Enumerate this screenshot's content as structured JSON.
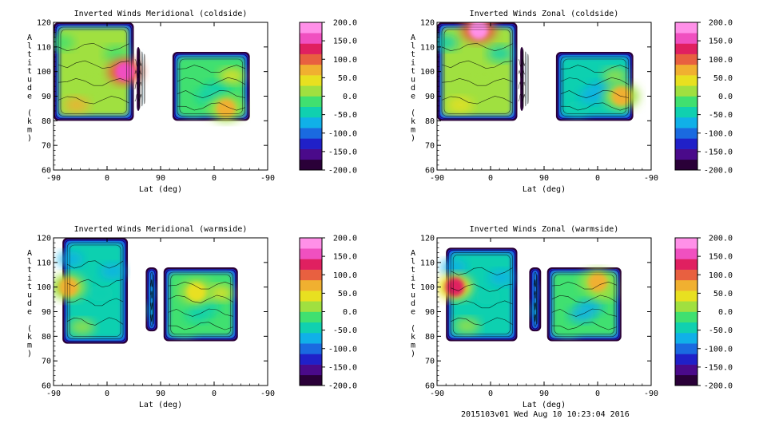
{
  "footer": "2015103v01 Wed Aug 10 10:23:04 2016",
  "colorbar": {
    "ticks": [
      "200.0",
      "150.0",
      "100.0",
      "50.0",
      "0.0",
      "-50.0",
      "-100.0",
      "-150.0",
      "-200.0"
    ],
    "range": [
      -200,
      200
    ],
    "colors": [
      "#2a0038",
      "#4a0a8a",
      "#2020c8",
      "#1a6ae0",
      "#10b0e8",
      "#10d0b0",
      "#40e070",
      "#a0e040",
      "#e8e020",
      "#f0b030",
      "#e86040",
      "#e02060",
      "#f050c0",
      "#ff90e8"
    ]
  },
  "axes": {
    "xlabel": "Lat (deg)",
    "ylabel": "Altitude (km)",
    "xticks": [
      "-90",
      "0",
      "90",
      "0",
      "-90"
    ],
    "yticks": [
      "120",
      "110",
      "100",
      "90",
      "80",
      "70",
      "60"
    ]
  },
  "chart_data": [
    {
      "type": "heatmap",
      "title": "Inverted Winds Meridional (coldside)",
      "xlabel": "Lat (deg)",
      "ylabel": "Altitude (km)",
      "ylim": [
        60,
        120
      ],
      "x_ticks": [
        "-90",
        "0",
        "90",
        "0",
        "-90"
      ],
      "y_ticks": [
        120,
        110,
        100,
        90,
        80,
        70,
        60
      ],
      "color_range": [
        -200,
        200
      ],
      "regions": [
        {
          "x_track": [
            -90,
            45
          ],
          "alt": [
            80,
            120
          ],
          "mean_value": 20,
          "peak_value": 170,
          "peak_at": [
            30,
            100
          ]
        },
        {
          "x_track": [
            50,
            55
          ],
          "alt": [
            84,
            110
          ],
          "mean_value": -60
        },
        {
          "x_track": [
            110,
            240
          ],
          "alt": [
            80,
            108
          ],
          "mean_value": -10,
          "peak_value": 60,
          "peak_at": [
            200,
            85
          ]
        }
      ]
    },
    {
      "type": "heatmap",
      "title": "Inverted Winds Zonal (coldside)",
      "xlabel": "Lat (deg)",
      "ylabel": "Altitude (km)",
      "ylim": [
        60,
        120
      ],
      "x_ticks": [
        "-90",
        "0",
        "90",
        "0",
        "-90"
      ],
      "y_ticks": [
        120,
        110,
        100,
        90,
        80,
        70,
        60
      ],
      "color_range": [
        -200,
        200
      ],
      "regions": [
        {
          "x_track": [
            -90,
            45
          ],
          "alt": [
            80,
            120
          ],
          "mean_value": 0,
          "peak_value": 180,
          "peak_at": [
            -20,
            117
          ]
        },
        {
          "x_track": [
            50,
            55
          ],
          "alt": [
            84,
            110
          ],
          "mean_value": -80
        },
        {
          "x_track": [
            110,
            240
          ],
          "alt": [
            80,
            108
          ],
          "mean_value": -40,
          "peak_value": 60,
          "peak_at": [
            220,
            90
          ]
        }
      ]
    },
    {
      "type": "heatmap",
      "title": "Inverted Winds Meridional (warmside)",
      "xlabel": "Lat (deg)",
      "ylabel": "Altitude (km)",
      "ylim": [
        60,
        120
      ],
      "x_ticks": [
        "-90",
        "0",
        "90",
        "0",
        "-90"
      ],
      "y_ticks": [
        120,
        110,
        100,
        90,
        80,
        70,
        60
      ],
      "color_range": [
        -200,
        200
      ],
      "regions": [
        {
          "x_track": [
            -75,
            35
          ],
          "alt": [
            77,
            120
          ],
          "mean_value": -40,
          "peak_value": 60,
          "peak_at": [
            -65,
            100
          ]
        },
        {
          "x_track": [
            65,
            85
          ],
          "alt": [
            82,
            108
          ],
          "mean_value": -40
        },
        {
          "x_track": [
            95,
            220
          ],
          "alt": [
            78,
            108
          ],
          "mean_value": -10,
          "peak_value": 30,
          "peak_at": [
            150,
            98
          ]
        }
      ]
    },
    {
      "type": "heatmap",
      "title": "Inverted Winds Zonal (warmside)",
      "xlabel": "Lat (deg)",
      "ylabel": "Altitude (km)",
      "ylim": [
        60,
        120
      ],
      "x_ticks": [
        "-90",
        "0",
        "90",
        "0",
        "-90"
      ],
      "y_ticks": [
        120,
        110,
        100,
        90,
        80,
        70,
        60
      ],
      "color_range": [
        -200,
        200
      ],
      "regions": [
        {
          "x_track": [
            -75,
            45
          ],
          "alt": [
            78,
            116
          ],
          "mean_value": -40,
          "peak_value": 120,
          "peak_at": [
            -60,
            100
          ]
        },
        {
          "x_track": [
            65,
            85
          ],
          "alt": [
            82,
            108
          ],
          "mean_value": -50
        },
        {
          "x_track": [
            95,
            220
          ],
          "alt": [
            78,
            108
          ],
          "mean_value": -20,
          "peak_value": 60,
          "peak_at": [
            180,
            102
          ]
        }
      ]
    }
  ]
}
